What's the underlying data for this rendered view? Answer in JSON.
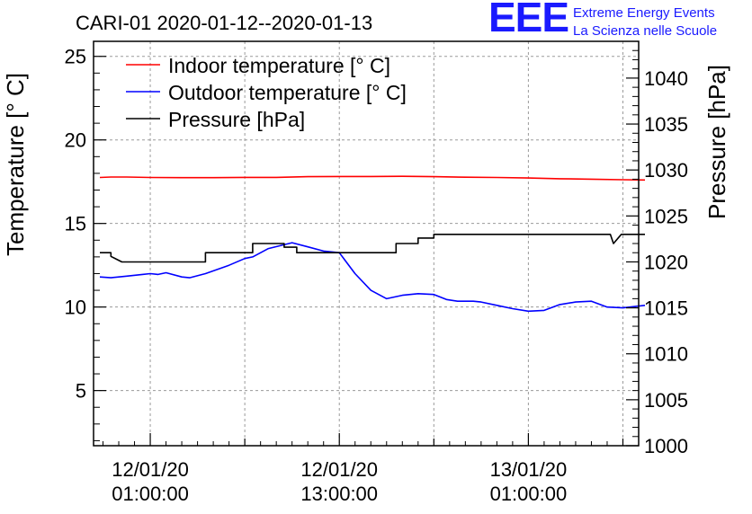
{
  "chart_data": {
    "type": "line",
    "title": "CARI-01 2020-01-12--2020-01-13",
    "ylabel": "Temperature [° C]",
    "y2label": "Pressure [hPa]",
    "xlabel": "",
    "ylim": [
      1.7,
      25.9
    ],
    "y2lim": [
      1000,
      1044
    ],
    "yticks": [
      5,
      10,
      15,
      20,
      25
    ],
    "y2ticks": [
      1000,
      1005,
      1010,
      1015,
      1020,
      1025,
      1030,
      1035,
      1040
    ],
    "xlim_hours": [
      -3.6,
      31.0
    ],
    "xticks": [
      {
        "hour": 0,
        "date": "12/01/20",
        "time": "01:00:00"
      },
      {
        "hour": 12,
        "date": "12/01/20",
        "time": "13:00:00"
      },
      {
        "hour": 24,
        "date": "13/01/20",
        "time": "01:00:00"
      }
    ],
    "grid": true,
    "legend_position": "top-left",
    "series": [
      {
        "name": "Indoor temperature [° C]",
        "axis": "left",
        "color": "#ff0000",
        "x_hours": [
          -3.2,
          -2.5,
          -1.5,
          0,
          2,
          4,
          6,
          8,
          10,
          12,
          14,
          16,
          18,
          20,
          22,
          24,
          26,
          28,
          30,
          31.4
        ],
        "values": [
          17.75,
          17.78,
          17.78,
          17.75,
          17.74,
          17.74,
          17.76,
          17.76,
          17.8,
          17.81,
          17.81,
          17.82,
          17.8,
          17.77,
          17.75,
          17.72,
          17.68,
          17.65,
          17.62,
          17.6
        ]
      },
      {
        "name": "Outdoor temperature [° C]",
        "axis": "left",
        "color": "#0000ff",
        "x_hours": [
          -3.2,
          -2.5,
          -1.5,
          -0.5,
          0,
          0.5,
          1,
          2,
          2.5,
          3.5,
          5,
          6,
          6.5,
          7.5,
          9,
          10,
          11,
          11.5,
          12,
          13,
          14,
          15,
          16,
          17,
          18,
          18.8,
          19.5,
          20.5,
          21,
          22,
          23,
          24,
          25,
          26,
          27,
          28,
          29,
          30,
          31.4
        ],
        "values": [
          11.8,
          11.75,
          11.85,
          11.95,
          12.0,
          11.95,
          12.05,
          11.8,
          11.75,
          12.0,
          12.5,
          12.9,
          13.0,
          13.5,
          13.85,
          13.6,
          13.35,
          13.3,
          13.25,
          12.0,
          11.0,
          10.5,
          10.7,
          10.8,
          10.75,
          10.45,
          10.35,
          10.35,
          10.3,
          10.1,
          9.9,
          9.75,
          9.8,
          10.15,
          10.3,
          10.35,
          10.0,
          9.95,
          10.1
        ]
      },
      {
        "name": "Pressure [hPa]",
        "axis": "right",
        "color": "#000000",
        "x_hours": [
          -3.2,
          -2.5,
          -2.5,
          -1.8,
          -1.8,
          0,
          3.5,
          3.5,
          6.5,
          6.5,
          8.5,
          8.5,
          9.3,
          9.3,
          15.6,
          15.6,
          17,
          17,
          18,
          18,
          29.2,
          29.4,
          29.9,
          30.6,
          31.4
        ],
        "values": [
          1021,
          1021,
          1020.6,
          1020,
          1020,
          1020,
          1020,
          1021,
          1021,
          1022,
          1022,
          1021.6,
          1021.6,
          1021,
          1021,
          1022,
          1022,
          1022.6,
          1022.6,
          1023,
          1023,
          1022,
          1023,
          1023,
          1023
        ]
      }
    ]
  },
  "logo": {
    "mark": "EEE",
    "line1": "Extreme Energy Events",
    "line2": "La Scienza nelle Scuole"
  }
}
